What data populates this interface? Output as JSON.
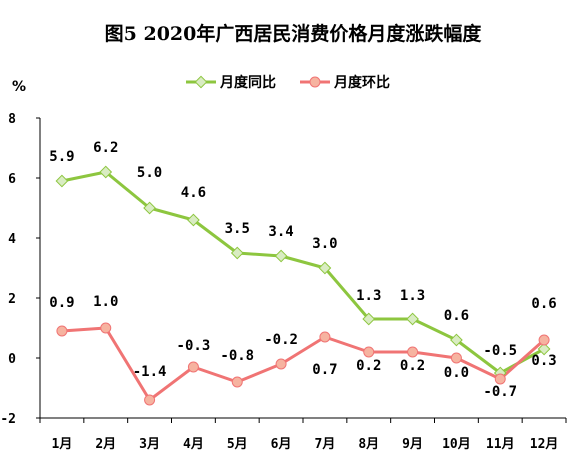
{
  "chart_data": {
    "type": "line",
    "title": "图5 2020年广西居民消费价格月度涨跌幅度",
    "ylabel": "%",
    "ylim": [
      -2,
      8
    ],
    "yticks": [
      "8",
      "6",
      "4",
      "2",
      "0",
      "-2"
    ],
    "grid": false,
    "legend": "top",
    "categories": [
      "1月",
      "2月",
      "3月",
      "4月",
      "5月",
      "6月",
      "7月",
      "8月",
      "9月",
      "10月",
      "11月",
      "12月"
    ],
    "series": [
      {
        "name": "月度同比",
        "color": "#8DC63F",
        "marker_color": "#D9ECC2",
        "values": [
          5.9,
          6.2,
          5.0,
          4.6,
          3.5,
          3.4,
          3.0,
          1.3,
          1.3,
          0.6,
          -0.5,
          0.3
        ],
        "labels": [
          "5.9",
          "6.2",
          "5.0",
          "4.6",
          "3.5",
          "3.4",
          "3.0",
          "1.3",
          "1.3",
          "0.6",
          "-0.5",
          "0.3"
        ]
      },
      {
        "name": "月度环比",
        "color": "#F07474",
        "marker_color": "#F6B3A0",
        "values": [
          0.9,
          1.0,
          -1.4,
          -0.3,
          -0.8,
          -0.2,
          0.7,
          0.2,
          0.2,
          0.0,
          -0.7,
          0.6
        ],
        "labels": [
          "0.9",
          "1.0",
          "-1.4",
          "-0.3",
          "-0.8",
          "-0.2",
          "0.7",
          "0.2",
          "0.2",
          "0.0",
          "-0.7",
          "0.6"
        ]
      }
    ]
  }
}
